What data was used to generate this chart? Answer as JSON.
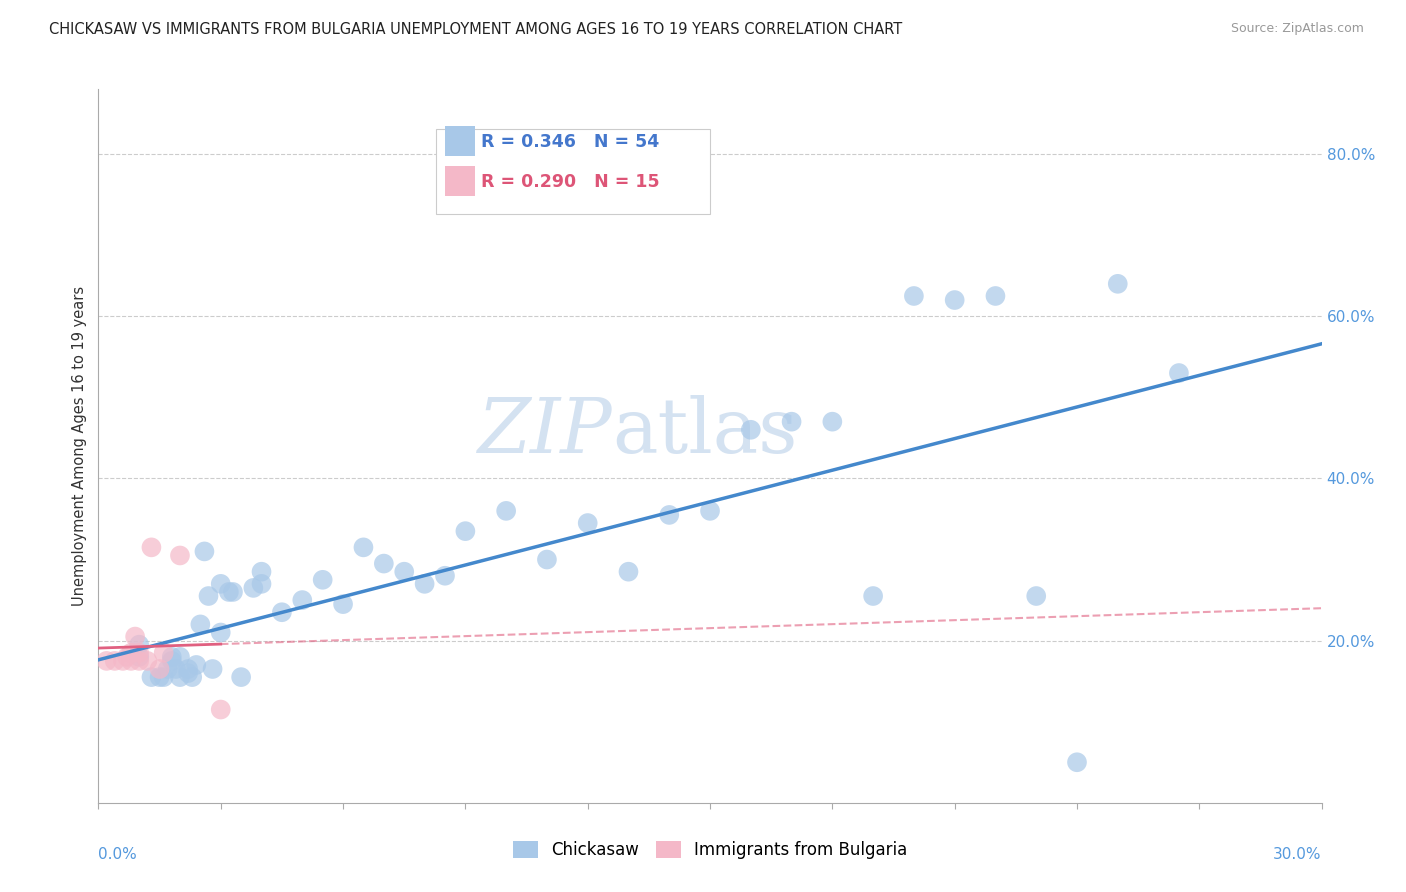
{
  "title": "CHICKASAW VS IMMIGRANTS FROM BULGARIA UNEMPLOYMENT AMONG AGES 16 TO 19 YEARS CORRELATION CHART",
  "source": "Source: ZipAtlas.com",
  "ylabel": "Unemployment Among Ages 16 to 19 years",
  "yaxis_labels": [
    "20.0%",
    "40.0%",
    "60.0%",
    "80.0%"
  ],
  "yaxis_values": [
    0.2,
    0.4,
    0.6,
    0.8
  ],
  "xmin": 0.0,
  "xmax": 0.3,
  "ymin": 0.0,
  "ymax": 0.88,
  "color_blue": "#a8c8e8",
  "color_pink": "#f4b8c8",
  "color_blue_line": "#4488cc",
  "color_pink_line": "#e06080",
  "watermark_color": "#d0dff0",
  "chickasaw_x": [
    0.01,
    0.01,
    0.013,
    0.015,
    0.016,
    0.017,
    0.018,
    0.018,
    0.019,
    0.02,
    0.02,
    0.022,
    0.022,
    0.023,
    0.024,
    0.025,
    0.026,
    0.027,
    0.028,
    0.03,
    0.03,
    0.032,
    0.033,
    0.035,
    0.038,
    0.04,
    0.04,
    0.045,
    0.05,
    0.055,
    0.06,
    0.065,
    0.07,
    0.075,
    0.08,
    0.085,
    0.09,
    0.1,
    0.11,
    0.12,
    0.13,
    0.14,
    0.15,
    0.16,
    0.17,
    0.18,
    0.19,
    0.2,
    0.21,
    0.22,
    0.23,
    0.24,
    0.25,
    0.265
  ],
  "chickasaw_y": [
    0.195,
    0.18,
    0.155,
    0.155,
    0.155,
    0.165,
    0.175,
    0.18,
    0.165,
    0.155,
    0.18,
    0.16,
    0.165,
    0.155,
    0.17,
    0.22,
    0.31,
    0.255,
    0.165,
    0.21,
    0.27,
    0.26,
    0.26,
    0.155,
    0.265,
    0.285,
    0.27,
    0.235,
    0.25,
    0.275,
    0.245,
    0.315,
    0.295,
    0.285,
    0.27,
    0.28,
    0.335,
    0.36,
    0.3,
    0.345,
    0.285,
    0.355,
    0.36,
    0.46,
    0.47,
    0.47,
    0.255,
    0.625,
    0.62,
    0.625,
    0.255,
    0.05,
    0.64,
    0.53
  ],
  "bulgaria_x": [
    0.002,
    0.004,
    0.006,
    0.007,
    0.008,
    0.008,
    0.009,
    0.01,
    0.01,
    0.012,
    0.013,
    0.015,
    0.016,
    0.02,
    0.03
  ],
  "bulgaria_y": [
    0.175,
    0.175,
    0.175,
    0.18,
    0.175,
    0.185,
    0.205,
    0.175,
    0.185,
    0.175,
    0.315,
    0.165,
    0.185,
    0.305,
    0.115
  ],
  "xtick_positions": [
    0.0,
    0.03,
    0.06,
    0.09,
    0.12,
    0.15,
    0.18,
    0.21,
    0.24,
    0.27,
    0.3
  ]
}
